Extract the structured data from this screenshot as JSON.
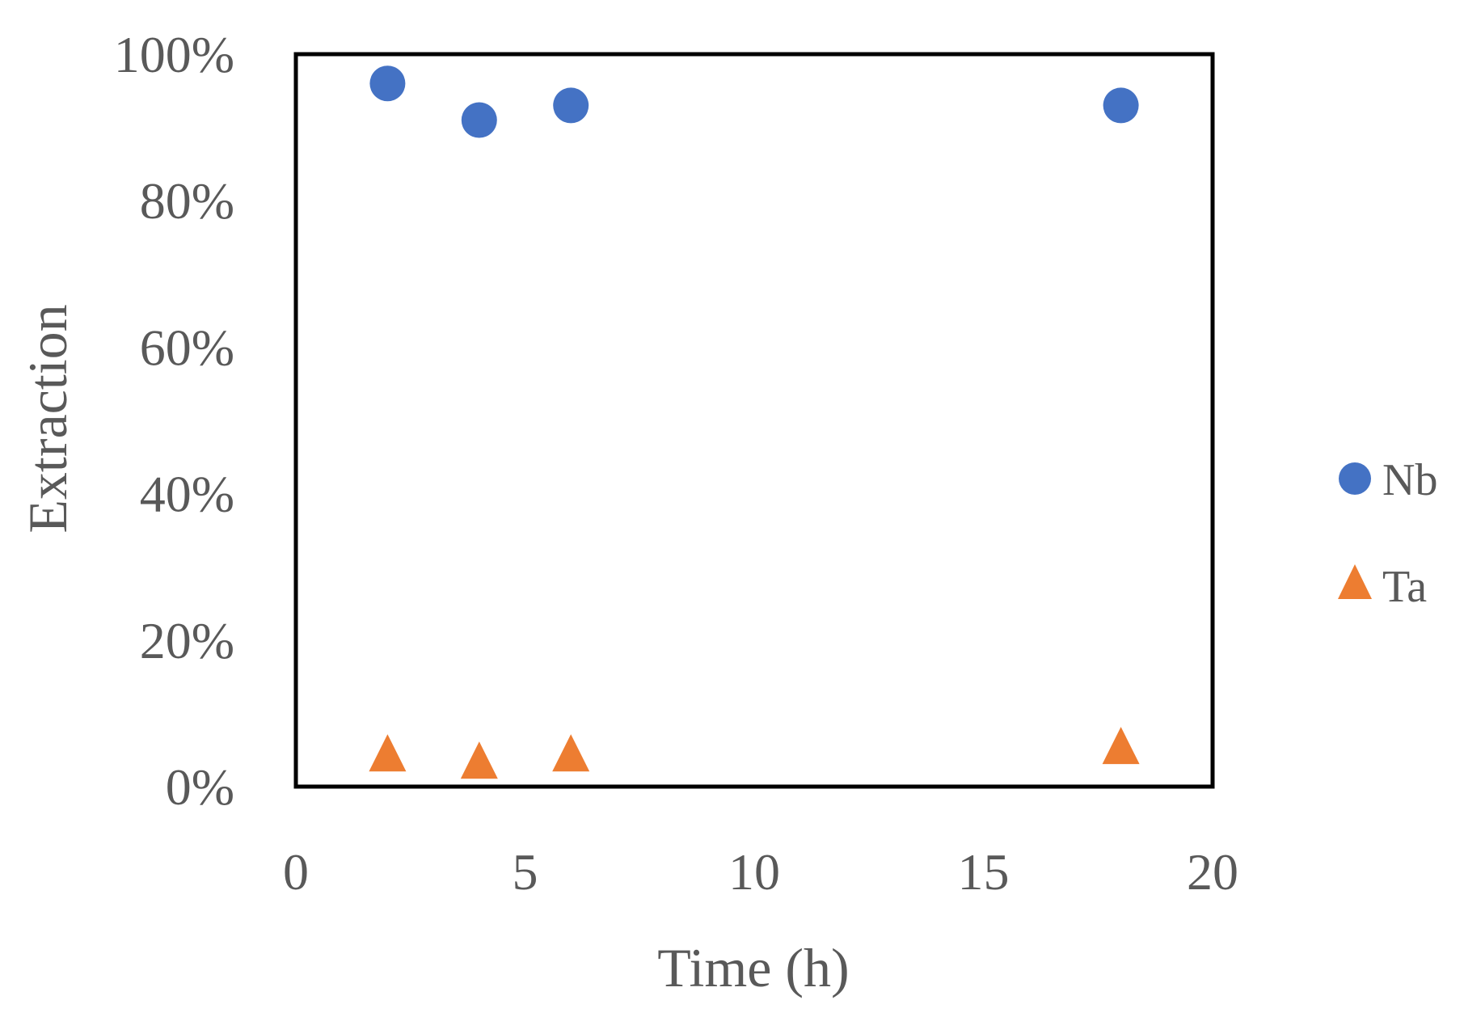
{
  "chart_data": {
    "type": "scatter",
    "title": "",
    "xlabel": "Time (h)",
    "ylabel": "Extraction",
    "xlim": [
      0,
      20
    ],
    "ylim": [
      0,
      1
    ],
    "x_ticks": [
      0,
      5,
      10,
      15,
      20
    ],
    "x_tick_labels": [
      "0",
      "5",
      "10",
      "15",
      "20"
    ],
    "y_ticks": [
      0,
      0.2,
      0.4,
      0.6,
      0.8,
      1.0
    ],
    "y_tick_labels": [
      "0%",
      "20%",
      "40%",
      "60%",
      "80%",
      "100%"
    ],
    "grid": false,
    "legend_position": "right",
    "series": [
      {
        "name": "Nb",
        "marker": "circle",
        "color": "#4472C4",
        "x": [
          2,
          4,
          6,
          18
        ],
        "y": [
          0.96,
          0.91,
          0.93,
          0.93
        ]
      },
      {
        "name": "Ta",
        "marker": "triangle",
        "color": "#ED7D31",
        "x": [
          2,
          4,
          6,
          18
        ],
        "y": [
          0.04,
          0.03,
          0.04,
          0.05
        ]
      }
    ]
  }
}
